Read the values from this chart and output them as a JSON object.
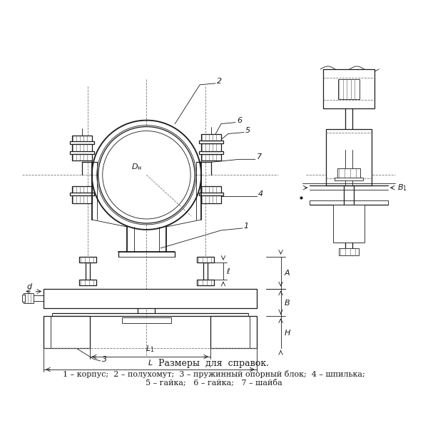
{
  "bg_color": "#ffffff",
  "line_color": "#1a1a1a",
  "dash_color": "#777777",
  "title_text": "Размеры  для  справок.",
  "legend_line1": "1 – корпус;  2 – полухомут;  3 – пружинный опорный блок;  4 – шпилька;",
  "legend_line2": "5 – гайка;   6 – гайка;   7 – шайба",
  "font_size_title": 9,
  "font_size_legend": 8,
  "font_size_labels": 7.5
}
